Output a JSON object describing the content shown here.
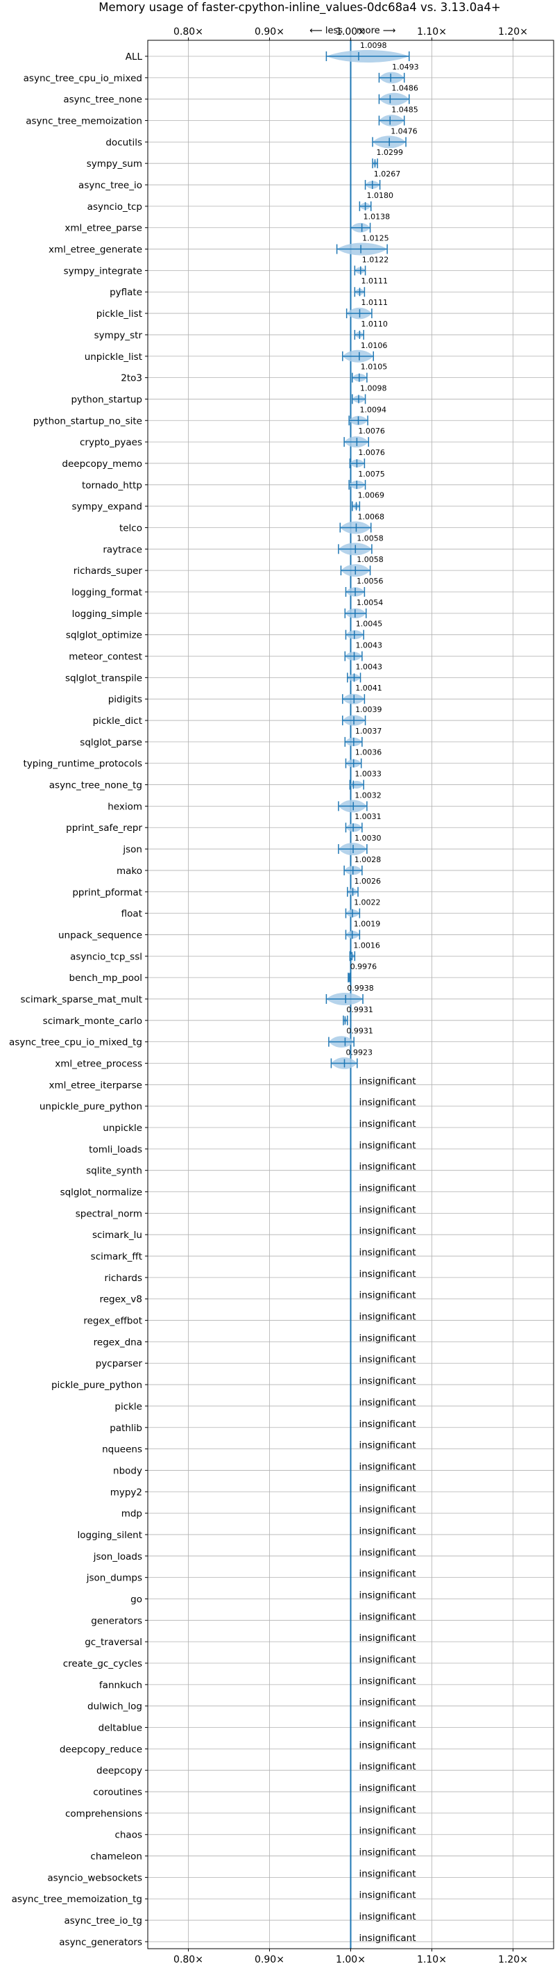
{
  "chart_data": {
    "type": "violin",
    "title": "Memory usage of faster-cpython-inline_values-0dc68a4 vs. 3.13.0a4+",
    "direction_labels": {
      "less": "⟵ less",
      "more": "more ⟶"
    },
    "xlim": [
      0.75,
      1.25
    ],
    "x_ticks": [
      0.8,
      0.9,
      1.0,
      1.1,
      1.2
    ],
    "x_tick_labels": [
      "0.80×",
      "0.90×",
      "1.00×",
      "1.10×",
      "1.20×"
    ],
    "reference_line": 1.0,
    "grid": true,
    "series_color": "#1f77b4",
    "violin_fill": "#a8cbe8",
    "insignificant_label": "insignificant",
    "rows": [
      {
        "name": "ALL",
        "value": 1.0098,
        "low": 0.97,
        "high": 1.072,
        "label": "1.0098"
      },
      {
        "name": "async_tree_cpu_io_mixed",
        "value": 1.0493,
        "low": 1.035,
        "high": 1.066,
        "label": "1.0493"
      },
      {
        "name": "async_tree_none",
        "value": 1.0486,
        "low": 1.035,
        "high": 1.072,
        "label": "1.0486"
      },
      {
        "name": "async_tree_memoization",
        "value": 1.0485,
        "low": 1.035,
        "high": 1.066,
        "label": "1.0485"
      },
      {
        "name": "docutils",
        "value": 1.0476,
        "low": 1.027,
        "high": 1.068,
        "label": "1.0476"
      },
      {
        "name": "sympy_sum",
        "value": 1.0299,
        "low": 1.027,
        "high": 1.033,
        "label": "1.0299"
      },
      {
        "name": "async_tree_io",
        "value": 1.0267,
        "low": 1.018,
        "high": 1.036,
        "label": "1.0267"
      },
      {
        "name": "asyncio_tcp",
        "value": 1.018,
        "low": 1.011,
        "high": 1.025,
        "label": "1.0180"
      },
      {
        "name": "xml_etree_parse",
        "value": 1.0138,
        "low": 1.0,
        "high": 1.024,
        "label": "1.0138"
      },
      {
        "name": "xml_etree_generate",
        "value": 1.0125,
        "low": 0.983,
        "high": 1.045,
        "label": "1.0125"
      },
      {
        "name": "sympy_integrate",
        "value": 1.0122,
        "low": 1.005,
        "high": 1.018,
        "label": "1.0122"
      },
      {
        "name": "pyflate",
        "value": 1.0111,
        "low": 1.005,
        "high": 1.017,
        "label": "1.0111"
      },
      {
        "name": "pickle_list",
        "value": 1.0111,
        "low": 0.995,
        "high": 1.026,
        "label": "1.0111"
      },
      {
        "name": "sympy_str",
        "value": 1.011,
        "low": 1.005,
        "high": 1.016,
        "label": "1.0110"
      },
      {
        "name": "unpickle_list",
        "value": 1.0106,
        "low": 0.99,
        "high": 1.028,
        "label": "1.0106"
      },
      {
        "name": "2to3",
        "value": 1.0105,
        "low": 1.002,
        "high": 1.02,
        "label": "1.0105"
      },
      {
        "name": "python_startup",
        "value": 1.0098,
        "low": 1.002,
        "high": 1.018,
        "label": "1.0098"
      },
      {
        "name": "python_startup_no_site",
        "value": 1.0094,
        "low": 0.998,
        "high": 1.021,
        "label": "1.0094"
      },
      {
        "name": "crypto_pyaes",
        "value": 1.0076,
        "low": 0.992,
        "high": 1.022,
        "label": "1.0076"
      },
      {
        "name": "deepcopy_memo",
        "value": 1.0076,
        "low": 0.999,
        "high": 1.017,
        "label": "1.0076"
      },
      {
        "name": "tornado_http",
        "value": 1.0075,
        "low": 0.998,
        "high": 1.018,
        "label": "1.0075"
      },
      {
        "name": "sympy_expand",
        "value": 1.0069,
        "low": 1.002,
        "high": 1.011,
        "label": "1.0069"
      },
      {
        "name": "telco",
        "value": 1.0068,
        "low": 0.987,
        "high": 1.025,
        "label": "1.0068"
      },
      {
        "name": "raytrace",
        "value": 1.0058,
        "low": 0.985,
        "high": 1.026,
        "label": "1.0058"
      },
      {
        "name": "richards_super",
        "value": 1.0058,
        "low": 0.988,
        "high": 1.024,
        "label": "1.0058"
      },
      {
        "name": "logging_format",
        "value": 1.0056,
        "low": 0.994,
        "high": 1.017,
        "label": "1.0056"
      },
      {
        "name": "logging_simple",
        "value": 1.0054,
        "low": 0.993,
        "high": 1.019,
        "label": "1.0054"
      },
      {
        "name": "sqlglot_optimize",
        "value": 1.0045,
        "low": 0.994,
        "high": 1.016,
        "label": "1.0045"
      },
      {
        "name": "meteor_contest",
        "value": 1.0043,
        "low": 0.993,
        "high": 1.014,
        "label": "1.0043"
      },
      {
        "name": "sqlglot_transpile",
        "value": 1.0043,
        "low": 0.996,
        "high": 1.012,
        "label": "1.0043"
      },
      {
        "name": "pidigits",
        "value": 1.0041,
        "low": 0.99,
        "high": 1.017,
        "label": "1.0041"
      },
      {
        "name": "pickle_dict",
        "value": 1.0039,
        "low": 0.99,
        "high": 1.018,
        "label": "1.0039"
      },
      {
        "name": "sqlglot_parse",
        "value": 1.0037,
        "low": 0.993,
        "high": 1.014,
        "label": "1.0037"
      },
      {
        "name": "typing_runtime_protocols",
        "value": 1.0036,
        "low": 0.994,
        "high": 1.013,
        "label": "1.0036"
      },
      {
        "name": "async_tree_none_tg",
        "value": 1.0033,
        "low": 0.999,
        "high": 1.016,
        "label": "1.0033"
      },
      {
        "name": "hexiom",
        "value": 1.0032,
        "low": 0.985,
        "high": 1.02,
        "label": "1.0032"
      },
      {
        "name": "pprint_safe_repr",
        "value": 1.0031,
        "low": 0.994,
        "high": 1.014,
        "label": "1.0031"
      },
      {
        "name": "json",
        "value": 1.003,
        "low": 0.985,
        "high": 1.02,
        "label": "1.0030"
      },
      {
        "name": "mako",
        "value": 1.0028,
        "low": 0.992,
        "high": 1.014,
        "label": "1.0028"
      },
      {
        "name": "pprint_pformat",
        "value": 1.0026,
        "low": 0.996,
        "high": 1.009,
        "label": "1.0026"
      },
      {
        "name": "float",
        "value": 1.0022,
        "low": 0.994,
        "high": 1.011,
        "label": "1.0022"
      },
      {
        "name": "unpack_sequence",
        "value": 1.0019,
        "low": 0.994,
        "high": 1.011,
        "label": "1.0019"
      },
      {
        "name": "asyncio_tcp_ssl",
        "value": 1.0016,
        "low": 0.999,
        "high": 1.005,
        "label": "1.0016"
      },
      {
        "name": "bench_mp_pool",
        "value": 0.9976,
        "low": 0.997,
        "high": 0.999,
        "label": "0.9976"
      },
      {
        "name": "scimark_sparse_mat_mult",
        "value": 0.9938,
        "low": 0.97,
        "high": 1.015,
        "label": "0.9938"
      },
      {
        "name": "scimark_monte_carlo",
        "value": 0.9931,
        "low": 0.991,
        "high": 0.996,
        "label": "0.9931"
      },
      {
        "name": "async_tree_cpu_io_mixed_tg",
        "value": 0.9931,
        "low": 0.973,
        "high": 1.004,
        "label": "0.9931"
      },
      {
        "name": "xml_etree_process",
        "value": 0.9923,
        "low": 0.976,
        "high": 1.008,
        "label": "0.9923"
      },
      {
        "name": "xml_etree_iterparse",
        "significant": false
      },
      {
        "name": "unpickle_pure_python",
        "significant": false
      },
      {
        "name": "unpickle",
        "significant": false
      },
      {
        "name": "tomli_loads",
        "significant": false
      },
      {
        "name": "sqlite_synth",
        "significant": false
      },
      {
        "name": "sqlglot_normalize",
        "significant": false
      },
      {
        "name": "spectral_norm",
        "significant": false
      },
      {
        "name": "scimark_lu",
        "significant": false
      },
      {
        "name": "scimark_fft",
        "significant": false
      },
      {
        "name": "richards",
        "significant": false
      },
      {
        "name": "regex_v8",
        "significant": false
      },
      {
        "name": "regex_effbot",
        "significant": false
      },
      {
        "name": "regex_dna",
        "significant": false
      },
      {
        "name": "pycparser",
        "significant": false
      },
      {
        "name": "pickle_pure_python",
        "significant": false
      },
      {
        "name": "pickle",
        "significant": false
      },
      {
        "name": "pathlib",
        "significant": false
      },
      {
        "name": "nqueens",
        "significant": false
      },
      {
        "name": "nbody",
        "significant": false
      },
      {
        "name": "mypy2",
        "significant": false
      },
      {
        "name": "mdp",
        "significant": false
      },
      {
        "name": "logging_silent",
        "significant": false
      },
      {
        "name": "json_loads",
        "significant": false
      },
      {
        "name": "json_dumps",
        "significant": false
      },
      {
        "name": "go",
        "significant": false
      },
      {
        "name": "generators",
        "significant": false
      },
      {
        "name": "gc_traversal",
        "significant": false
      },
      {
        "name": "create_gc_cycles",
        "significant": false
      },
      {
        "name": "fannkuch",
        "significant": false
      },
      {
        "name": "dulwich_log",
        "significant": false
      },
      {
        "name": "deltablue",
        "significant": false
      },
      {
        "name": "deepcopy_reduce",
        "significant": false
      },
      {
        "name": "deepcopy",
        "significant": false
      },
      {
        "name": "coroutines",
        "significant": false
      },
      {
        "name": "comprehensions",
        "significant": false
      },
      {
        "name": "chaos",
        "significant": false
      },
      {
        "name": "chameleon",
        "significant": false
      },
      {
        "name": "asyncio_websockets",
        "significant": false
      },
      {
        "name": "async_tree_memoization_tg",
        "significant": false
      },
      {
        "name": "async_tree_io_tg",
        "significant": false
      },
      {
        "name": "async_generators",
        "significant": false
      }
    ]
  }
}
